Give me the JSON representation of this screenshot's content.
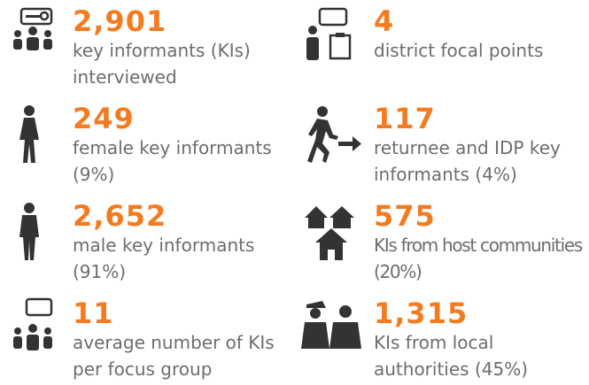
{
  "items": [
    {
      "number": "2,901",
      "lines": [
        "key informants (KIs)",
        "interviewed"
      ]
    },
    {
      "number": "4",
      "lines": [
        "district focal points"
      ]
    },
    {
      "number": "249",
      "lines": [
        "female key informants",
        "(9%)"
      ]
    },
    {
      "number": "117",
      "lines": [
        "returnee and IDP key",
        "informants (4%)"
      ]
    },
    {
      "number": "2,652",
      "lines": [
        "male key informants",
        "(91%)"
      ]
    },
    {
      "number": "575",
      "lines": [
        "KIs from host communities",
        "(20%)"
      ]
    },
    {
      "number": "11",
      "lines": [
        "average number of KIs",
        "per focus group"
      ]
    },
    {
      "number": "1,315",
      "lines": [
        "KIs from local",
        "authorities (45%)"
      ]
    }
  ]
}
